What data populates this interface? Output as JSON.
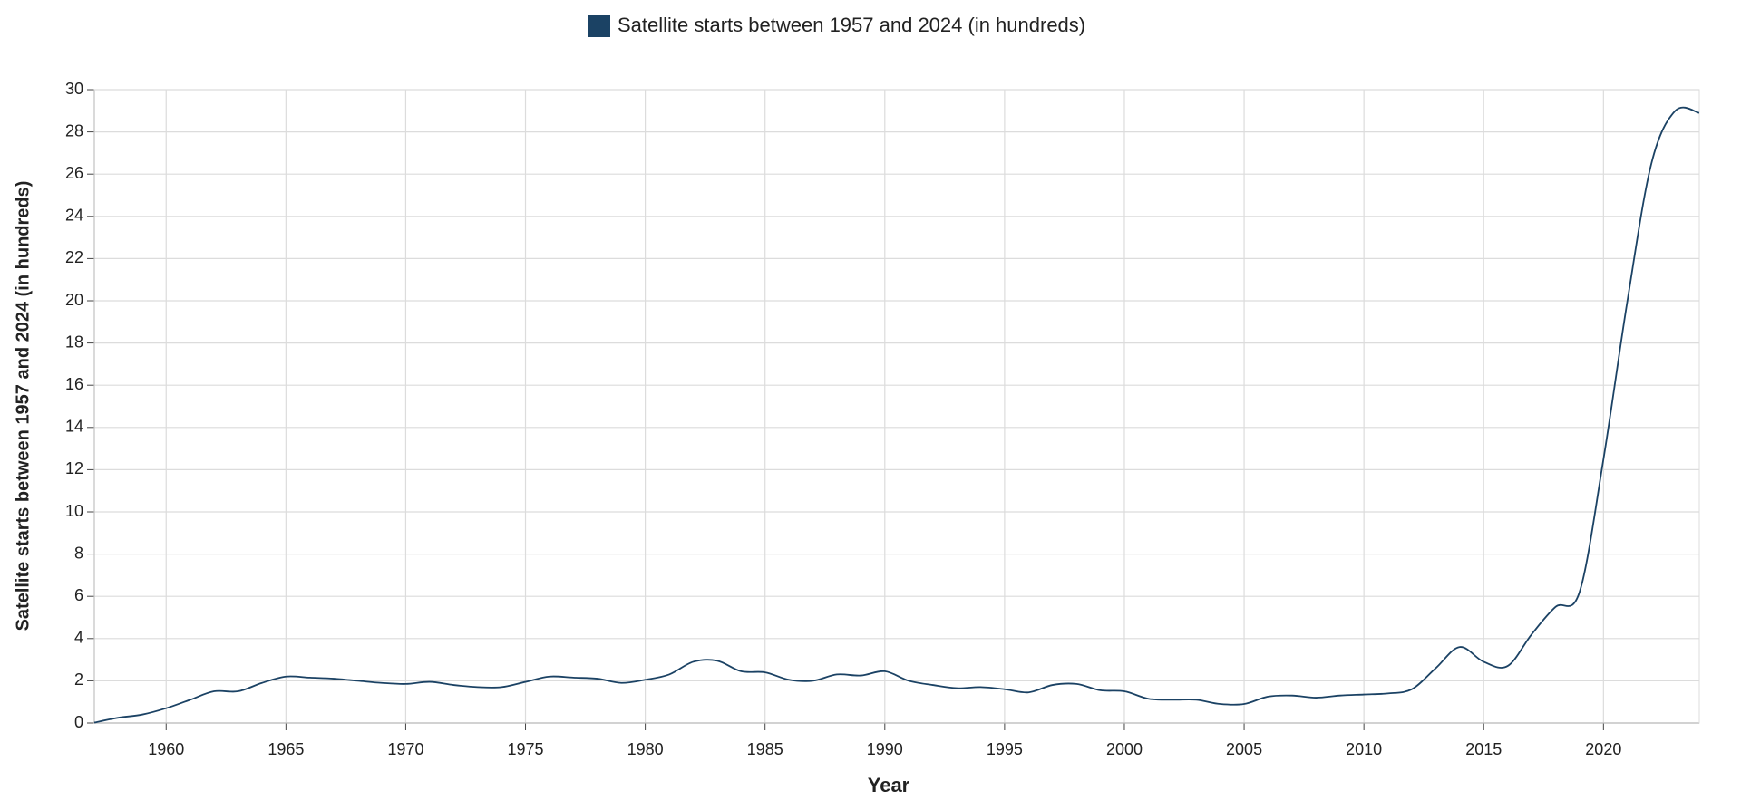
{
  "chart_data": {
    "type": "line",
    "x_label": "Year",
    "y_label": "Satellite starts between 1957 and 2024 (in hundreds)",
    "x": [
      1957,
      1958,
      1959,
      1960,
      1961,
      1962,
      1963,
      1964,
      1965,
      1966,
      1967,
      1968,
      1969,
      1970,
      1971,
      1972,
      1973,
      1974,
      1975,
      1976,
      1977,
      1978,
      1979,
      1980,
      1981,
      1982,
      1983,
      1984,
      1985,
      1986,
      1987,
      1988,
      1989,
      1990,
      1991,
      1992,
      1993,
      1994,
      1995,
      1996,
      1997,
      1998,
      1999,
      2000,
      2001,
      2002,
      2003,
      2004,
      2005,
      2006,
      2007,
      2008,
      2009,
      2010,
      2011,
      2012,
      2013,
      2014,
      2015,
      2016,
      2017,
      2018,
      2019,
      2020,
      2021,
      2022,
      2023,
      2024
    ],
    "series": [
      {
        "name": "Satellite starts between 1957 and 2024 (in hundreds)",
        "color": "#1b4264",
        "values": [
          0.02,
          0.25,
          0.4,
          0.7,
          1.1,
          1.5,
          1.5,
          1.9,
          2.2,
          2.15,
          2.1,
          2.0,
          1.9,
          1.85,
          1.95,
          1.8,
          1.7,
          1.7,
          1.95,
          2.2,
          2.15,
          2.1,
          1.9,
          2.05,
          2.3,
          2.9,
          2.95,
          2.45,
          2.4,
          2.05,
          2.0,
          2.3,
          2.25,
          2.45,
          2.0,
          1.8,
          1.65,
          1.7,
          1.6,
          1.45,
          1.8,
          1.85,
          1.55,
          1.5,
          1.15,
          1.1,
          1.1,
          0.9,
          0.9,
          1.25,
          1.3,
          1.2,
          1.3,
          1.35,
          1.4,
          1.6,
          2.6,
          3.6,
          2.9,
          2.7,
          4.2,
          5.5,
          6.2,
          12.5,
          20,
          26.5,
          29,
          28.9
        ]
      }
    ],
    "xlim": [
      1957,
      2024
    ],
    "xticks": [
      1960,
      1965,
      1970,
      1975,
      1980,
      1985,
      1990,
      1995,
      2000,
      2005,
      2010,
      2015,
      2020
    ],
    "ylim": [
      0,
      30
    ],
    "yticks": [
      0,
      2,
      4,
      6,
      8,
      10,
      12,
      14,
      16,
      18,
      20,
      22,
      24,
      26,
      28,
      30
    ],
    "grid": true,
    "legend": "top"
  }
}
